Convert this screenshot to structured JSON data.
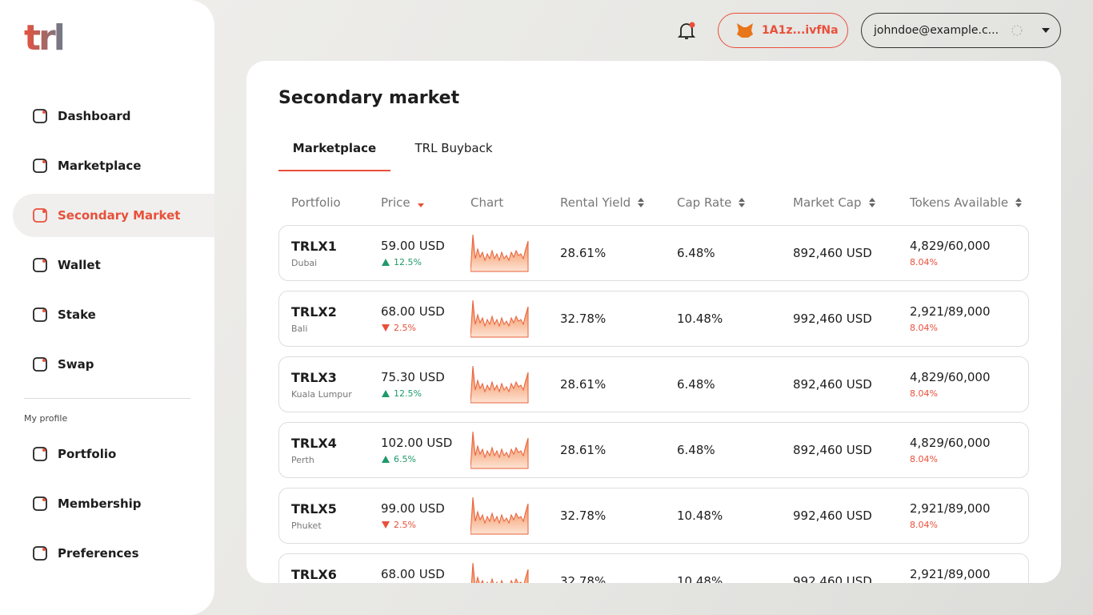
{
  "logo": "trl",
  "nav": {
    "items": [
      "Dashboard",
      "Marketplace",
      "Secondary Market",
      "Wallet",
      "Stake",
      "Swap"
    ]
  },
  "profile_section": {
    "title": "My profile",
    "items": [
      "Portfolio",
      "Membership",
      "Preferences"
    ]
  },
  "header": {
    "wallet": "1A1z...ivfNa",
    "email": "johndoe@example.c..."
  },
  "page": {
    "title": "Secondary market",
    "tabs": [
      "Marketplace",
      "TRL Buyback"
    ]
  },
  "table": {
    "columns": [
      "Portfolio",
      "Price",
      "Chart",
      "Rental Yield",
      "Cap Rate",
      "Market Cap",
      "Tokens Available"
    ],
    "rows": [
      {
        "portfolio": "TRLX1",
        "location": "Dubai",
        "price": "59.00 USD",
        "change": "12.5%",
        "trend": "up",
        "rental_yield": "28.61%",
        "cap_rate": "6.48%",
        "market_cap": "892,460 USD",
        "tokens": "4,829/60,000",
        "tokens_change": "8.04%"
      },
      {
        "portfolio": "TRLX2",
        "location": "Bali",
        "price": "68.00 USD",
        "change": "2.5%",
        "trend": "down",
        "rental_yield": "32.78%",
        "cap_rate": "10.48%",
        "market_cap": "992,460 USD",
        "tokens": "2,921/89,000",
        "tokens_change": "8.04%"
      },
      {
        "portfolio": "TRLX3",
        "location": "Kuala Lumpur",
        "price": "75.30 USD",
        "change": "12.5%",
        "trend": "up",
        "rental_yield": "28.61%",
        "cap_rate": "6.48%",
        "market_cap": "892,460 USD",
        "tokens": "4,829/60,000",
        "tokens_change": "8.04%"
      },
      {
        "portfolio": "TRLX4",
        "location": "Perth",
        "price": "102.00 USD",
        "change": "6.5%",
        "trend": "up",
        "rental_yield": "28.61%",
        "cap_rate": "6.48%",
        "market_cap": "892,460 USD",
        "tokens": "4,829/60,000",
        "tokens_change": "8.04%"
      },
      {
        "portfolio": "TRLX5",
        "location": "Phuket",
        "price": "99.00 USD",
        "change": "2.5%",
        "trend": "down",
        "rental_yield": "32.78%",
        "cap_rate": "10.48%",
        "market_cap": "992,460 USD",
        "tokens": "2,921/89,000",
        "tokens_change": "8.04%"
      },
      {
        "portfolio": "TRLX6",
        "price": "68.00 USD",
        "rental_yield": "32.78%",
        "cap_rate": "10.48%",
        "market_cap": "992,460 USD",
        "tokens": "2,921/89,000"
      }
    ]
  }
}
